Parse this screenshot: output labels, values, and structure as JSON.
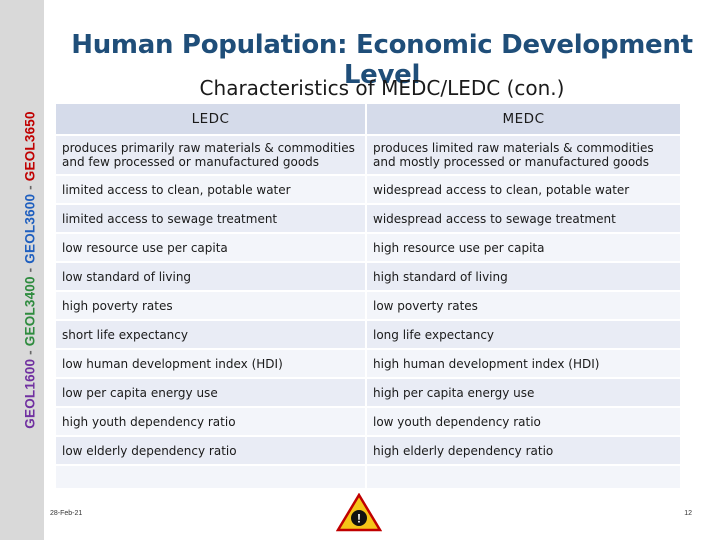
{
  "sidebar": {
    "code1": "GEOL1600",
    "separator": " - ",
    "code2": "GEOL3400",
    "code3": "GEOL3600",
    "code4": "GEOL3650"
  },
  "header": {
    "title": "Human Population: Economic Development Level",
    "subtitle": "Characteristics of MEDC/LEDC (con.)"
  },
  "table": {
    "headers": [
      "LEDC",
      "MEDC"
    ],
    "rows": [
      [
        "produces primarily raw materials & commodities and few processed or manufactured goods",
        "produces limited raw materials & commodities and mostly processed or manufactured goods"
      ],
      [
        "limited access to clean, potable water",
        "widespread access to clean, potable water"
      ],
      [
        "limited access to sewage treatment",
        "widespread access to sewage treatment"
      ],
      [
        "low resource use per capita",
        "high resource use per capita"
      ],
      [
        "low standard of living",
        "high standard of living"
      ],
      [
        "high poverty rates",
        "low poverty rates"
      ],
      [
        "short life expectancy",
        "long life expectancy"
      ],
      [
        "low human development index (HDI)",
        "high human development index (HDI)"
      ],
      [
        "low per capita energy use",
        "high per capita energy use"
      ],
      [
        "high youth dependency ratio",
        "low youth dependency ratio"
      ],
      [
        "low elderly dependency ratio",
        "high elderly dependency ratio"
      ],
      [
        "",
        ""
      ]
    ]
  },
  "footer": {
    "date": "28-Feb-21",
    "page": "12",
    "logo_icon": "warning-sign-logo-icon",
    "logo_mark": "!"
  }
}
